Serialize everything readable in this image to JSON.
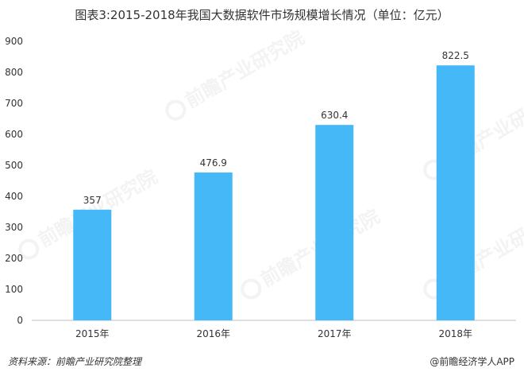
{
  "watermark_text": "前瞻产业研究院",
  "footer": {
    "source": "资料来源：前瞻产业研究院整理",
    "brand": "@前瞻经济学人APP"
  },
  "colors": {
    "bar": "#45b8f8",
    "axis": "#bfbfbf",
    "text": "#333333"
  },
  "chart_data": {
    "type": "bar",
    "title": "图表3:2015-2018年我国大数据软件市场规模增长情况（单位：亿元）",
    "categories": [
      "2015年",
      "2016年",
      "2017年",
      "2018年"
    ],
    "values": [
      357,
      476.9,
      630.4,
      822.5
    ],
    "value_labels": [
      "357",
      "476.9",
      "630.4",
      "822.5"
    ],
    "ylim": [
      0,
      900
    ],
    "yticks": [
      0,
      100,
      200,
      300,
      400,
      500,
      600,
      700,
      800,
      900
    ],
    "xlabel": "",
    "ylabel": "",
    "grid": false,
    "legend": "none"
  }
}
